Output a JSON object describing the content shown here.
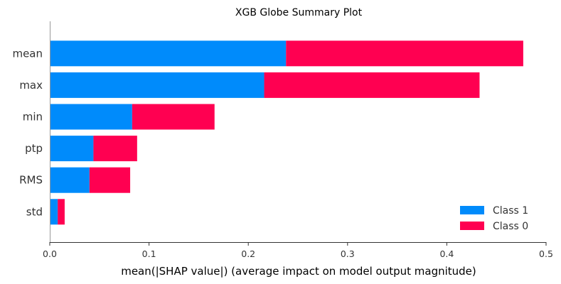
{
  "chart_data": {
    "type": "bar",
    "orientation": "horizontal",
    "stacked": true,
    "title": "XGB Globe Summary Plot",
    "xlabel": "mean(|SHAP value|) (average impact on model output magnitude)",
    "ylabel": "",
    "xlim": [
      0,
      0.5
    ],
    "xticks": [
      "0.0",
      "0.1",
      "0.2",
      "0.3",
      "0.4",
      "0.5"
    ],
    "categories": [
      "mean",
      "max",
      "min",
      "ptp",
      "RMS",
      "std"
    ],
    "series": [
      {
        "name": "Class 1",
        "color": "#008bfb",
        "values": [
          0.238,
          0.216,
          0.083,
          0.044,
          0.04,
          0.008
        ]
      },
      {
        "name": "Class 0",
        "color": "#ff0051",
        "values": [
          0.239,
          0.217,
          0.083,
          0.044,
          0.041,
          0.007
        ]
      }
    ],
    "legend_position": "bottom-right",
    "grid": false
  }
}
